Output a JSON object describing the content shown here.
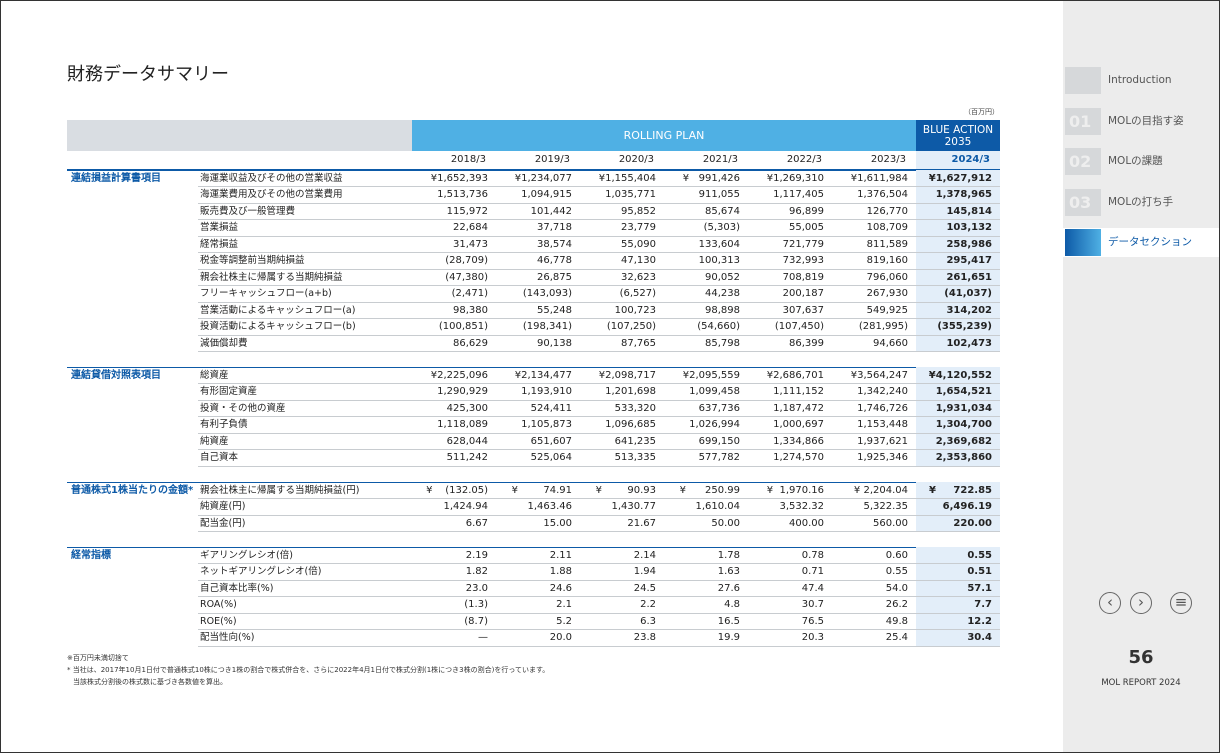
{
  "title": "財務データサマリー",
  "unit": "（百万円）",
  "header": {
    "plan": "ROLLING PLAN",
    "target": "BLUE ACTION 2035",
    "years": [
      "2018/3",
      "2019/3",
      "2020/3",
      "2021/3",
      "2022/3",
      "2023/3",
      "2024/3"
    ]
  },
  "sections": [
    {
      "name": "連結損益計算書項目",
      "rows": [
        [
          "海運業収益及びその他の営業収益",
          "¥1,652,393",
          "¥1,234,077",
          "¥1,155,404",
          "¥   991,426",
          "¥1,269,310",
          "¥1,611,984",
          "¥1,627,912"
        ],
        [
          "海運業費用及びその他の営業費用",
          "1,513,736",
          "1,094,915",
          "1,035,771",
          "911,055",
          "1,117,405",
          "1,376,504",
          "1,378,965"
        ],
        [
          "販売費及び一般管理費",
          "115,972",
          "101,442",
          "95,852",
          "85,674",
          "96,899",
          "126,770",
          "145,814"
        ],
        [
          "営業損益",
          "22,684",
          "37,718",
          "23,779",
          "(5,303)",
          "55,005",
          "108,709",
          "103,132"
        ],
        [
          "経常損益",
          "31,473",
          "38,574",
          "55,090",
          "133,604",
          "721,779",
          "811,589",
          "258,986"
        ],
        [
          "税金等調整前当期純損益",
          "(28,709)",
          "46,778",
          "47,130",
          "100,313",
          "732,993",
          "819,160",
          "295,417"
        ],
        [
          "親会社株主に帰属する当期純損益",
          "(47,380)",
          "26,875",
          "32,623",
          "90,052",
          "708,819",
          "796,060",
          "261,651"
        ],
        [
          "フリーキャッシュフロー(a+b)",
          "(2,471)",
          "(143,093)",
          "(6,527)",
          "44,238",
          "200,187",
          "267,930",
          "(41,037)"
        ],
        [
          "営業活動によるキャッシュフロー(a)",
          "98,380",
          "55,248",
          "100,723",
          "98,898",
          "307,637",
          "549,925",
          "314,202"
        ],
        [
          "投資活動によるキャッシュフロー(b)",
          "(100,851)",
          "(198,341)",
          "(107,250)",
          "(54,660)",
          "(107,450)",
          "(281,995)",
          "(355,239)"
        ],
        [
          "減価償却費",
          "86,629",
          "90,138",
          "87,765",
          "85,798",
          "86,399",
          "94,660",
          "102,473"
        ]
      ]
    },
    {
      "name": "連結貸借対照表項目",
      "rows": [
        [
          "総資産",
          "¥2,225,096",
          "¥2,134,477",
          "¥2,098,717",
          "¥2,095,559",
          "¥2,686,701",
          "¥3,564,247",
          "¥4,120,552"
        ],
        [
          "有形固定資産",
          "1,290,929",
          "1,193,910",
          "1,201,698",
          "1,099,458",
          "1,111,152",
          "1,342,240",
          "1,654,521"
        ],
        [
          "投資・その他の資産",
          "425,300",
          "524,411",
          "533,320",
          "637,736",
          "1,187,472",
          "1,746,726",
          "1,931,034"
        ],
        [
          "有利子負債",
          "1,118,089",
          "1,105,873",
          "1,096,685",
          "1,026,994",
          "1,000,697",
          "1,153,448",
          "1,304,700"
        ],
        [
          "純資産",
          "628,044",
          "651,607",
          "641,235",
          "699,150",
          "1,334,866",
          "1,937,621",
          "2,369,682"
        ],
        [
          "自己資本",
          "511,242",
          "525,064",
          "513,335",
          "577,782",
          "1,274,570",
          "1,925,346",
          "2,353,860"
        ]
      ]
    },
    {
      "name": "普通株式1株当たりの金額*",
      "rows": [
        [
          "親会社株主に帰属する当期純損益(円)",
          "¥    (132.05)",
          "¥        74.91",
          "¥        90.93",
          "¥      250.99",
          "¥  1,970.16",
          "¥ 2,204.04",
          "¥     722.85"
        ],
        [
          "純資産(円)",
          "1,424.94",
          "1,463.46",
          "1,430.77",
          "1,610.04",
          "3,532.32",
          "5,322.35",
          "6,496.19"
        ],
        [
          "配当金(円)",
          "6.67",
          "15.00",
          "21.67",
          "50.00",
          "400.00",
          "560.00",
          "220.00"
        ]
      ]
    },
    {
      "name": "経常指標",
      "rows": [
        [
          "ギアリングレシオ(倍)",
          "2.19",
          "2.11",
          "2.14",
          "1.78",
          "0.78",
          "0.60",
          "0.55"
        ],
        [
          "ネットギアリングレシオ(倍)",
          "1.82",
          "1.88",
          "1.94",
          "1.63",
          "0.71",
          "0.55",
          "0.51"
        ],
        [
          "自己資本比率(%)",
          "23.0",
          "24.6",
          "24.5",
          "27.6",
          "47.4",
          "54.0",
          "57.1"
        ],
        [
          "ROA(%)",
          "(1.3)",
          "2.1",
          "2.2",
          "4.8",
          "30.7",
          "26.2",
          "7.7"
        ],
        [
          "ROE(%)",
          "(8.7)",
          "5.2",
          "6.3",
          "16.5",
          "76.5",
          "49.8",
          "12.2"
        ],
        [
          "配当性向(%)",
          "—",
          "20.0",
          "23.8",
          "19.9",
          "20.3",
          "25.4",
          "30.4"
        ]
      ]
    }
  ],
  "notes": [
    "※百万円未満切捨て",
    "* 当社は、2017年10月1日付で普通株式10株につき1株の割合で株式併合を、さらに2022年4月1日付で株式分割(1株につき3株の割合)を行っています。",
    "当該株式分割後の株式数に基づき各数値を算出。"
  ],
  "nav": [
    {
      "label": "Introduction"
    },
    {
      "num": "01",
      "label": "MOLの目指す姿"
    },
    {
      "num": "02",
      "label": "MOLの課題"
    },
    {
      "num": "03",
      "label": "MOLの打ち手"
    },
    {
      "label": "データセクション"
    }
  ],
  "page": {
    "number": "56",
    "report": "MOL REPORT 2024"
  }
}
